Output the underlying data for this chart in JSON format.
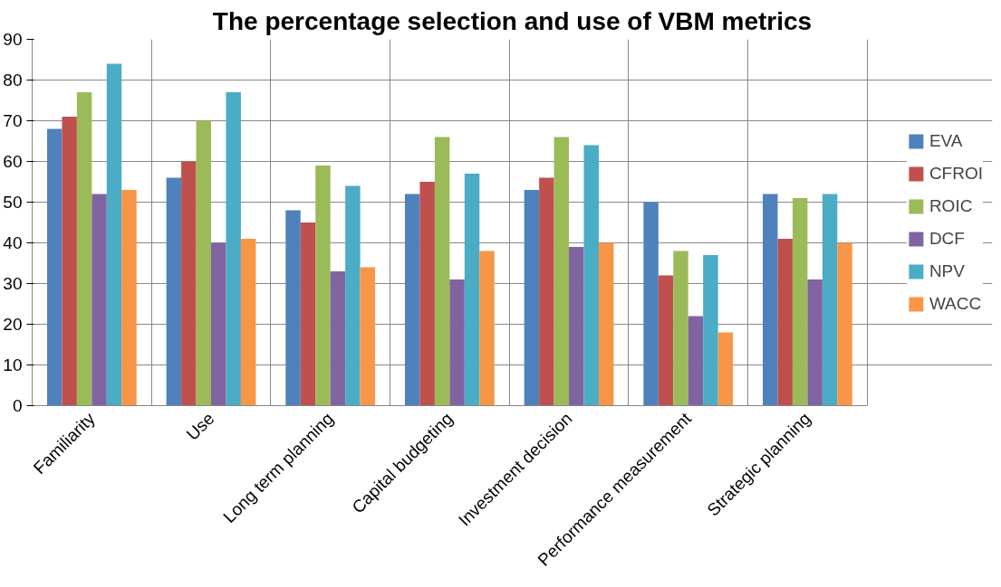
{
  "chart_data": {
    "type": "bar",
    "title": "The percentage selection and use of VBM metrics",
    "categories": [
      "Familiarity",
      "Use",
      "Long term planning",
      "Capital budgeting",
      "Investment decision",
      "Performance measurement",
      "Strategic planning"
    ],
    "series": [
      {
        "name": "EVA",
        "color": "#4f81bd",
        "values": [
          68,
          56,
          48,
          52,
          53,
          50,
          52
        ]
      },
      {
        "name": "CFROI",
        "color": "#c0504d",
        "values": [
          71,
          60,
          45,
          55,
          56,
          32,
          41
        ]
      },
      {
        "name": "ROIC",
        "color": "#9bbb59",
        "values": [
          77,
          70,
          59,
          66,
          66,
          38,
          51
        ]
      },
      {
        "name": "DCF",
        "color": "#8064a2",
        "values": [
          52,
          40,
          33,
          31,
          39,
          22,
          31
        ]
      },
      {
        "name": "NPV",
        "color": "#4bacc6",
        "values": [
          84,
          77,
          54,
          57,
          64,
          37,
          52
        ]
      },
      {
        "name": "WACC",
        "color": "#f79646",
        "values": [
          53,
          41,
          34,
          38,
          40,
          18,
          40
        ]
      }
    ],
    "ylim": [
      0,
      90
    ],
    "yticks": [
      0,
      10,
      20,
      30,
      40,
      50,
      60,
      70,
      80,
      90
    ],
    "grid": true,
    "legend": "right"
  }
}
